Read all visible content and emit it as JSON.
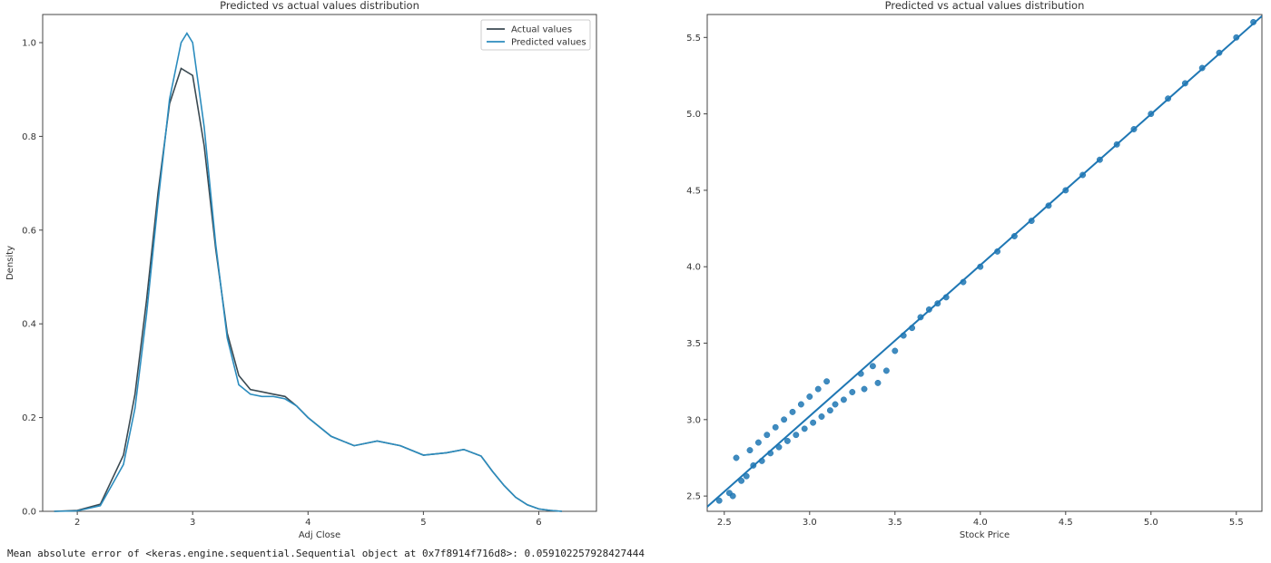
{
  "console": {
    "output": "Mean absolute error of <keras.engine.sequential.Sequential object at 0x7f8914f716d8>: 0.059102257928427444"
  },
  "chart_data": [
    {
      "type": "line",
      "title": "Predicted vs actual values distribution",
      "xlabel": "Adj Close",
      "ylabel": "Density",
      "xlim": [
        1.7,
        6.5
      ],
      "ylim": [
        0,
        1.06
      ],
      "xticks": [
        2,
        3,
        4,
        5,
        6
      ],
      "yticks": [
        0.0,
        0.2,
        0.4,
        0.6,
        0.8,
        1.0
      ],
      "legend_position": "top-right",
      "series": [
        {
          "name": "Actual values",
          "color": "#3b4a52",
          "points": [
            [
              1.8,
              0.0
            ],
            [
              2.0,
              0.002
            ],
            [
              2.2,
              0.015
            ],
            [
              2.4,
              0.12
            ],
            [
              2.5,
              0.25
            ],
            [
              2.6,
              0.45
            ],
            [
              2.7,
              0.68
            ],
            [
              2.8,
              0.87
            ],
            [
              2.9,
              0.945
            ],
            [
              3.0,
              0.93
            ],
            [
              3.1,
              0.78
            ],
            [
              3.2,
              0.56
            ],
            [
              3.3,
              0.38
            ],
            [
              3.4,
              0.29
            ],
            [
              3.5,
              0.26
            ],
            [
              3.6,
              0.255
            ],
            [
              3.7,
              0.25
            ],
            [
              3.8,
              0.245
            ],
            [
              3.9,
              0.225
            ],
            [
              4.0,
              0.2
            ],
            [
              4.2,
              0.16
            ],
            [
              4.4,
              0.14
            ],
            [
              4.6,
              0.15
            ],
            [
              4.8,
              0.14
            ],
            [
              5.0,
              0.12
            ],
            [
              5.2,
              0.125
            ],
            [
              5.35,
              0.132
            ],
            [
              5.5,
              0.118
            ],
            [
              5.6,
              0.085
            ],
            [
              5.7,
              0.055
            ],
            [
              5.8,
              0.03
            ],
            [
              5.9,
              0.014
            ],
            [
              6.0,
              0.005
            ],
            [
              6.1,
              0.002
            ],
            [
              6.2,
              0.0
            ]
          ]
        },
        {
          "name": "Predicted values",
          "color": "#2b8cbe",
          "points": [
            [
              1.8,
              0.0
            ],
            [
              2.0,
              0.001
            ],
            [
              2.2,
              0.012
            ],
            [
              2.4,
              0.1
            ],
            [
              2.5,
              0.22
            ],
            [
              2.6,
              0.42
            ],
            [
              2.7,
              0.66
            ],
            [
              2.8,
              0.88
            ],
            [
              2.9,
              1.0
            ],
            [
              2.95,
              1.02
            ],
            [
              3.0,
              1.0
            ],
            [
              3.1,
              0.82
            ],
            [
              3.2,
              0.57
            ],
            [
              3.3,
              0.37
            ],
            [
              3.4,
              0.27
            ],
            [
              3.5,
              0.25
            ],
            [
              3.6,
              0.245
            ],
            [
              3.7,
              0.245
            ],
            [
              3.8,
              0.24
            ],
            [
              3.9,
              0.225
            ],
            [
              4.0,
              0.2
            ],
            [
              4.2,
              0.16
            ],
            [
              4.4,
              0.14
            ],
            [
              4.6,
              0.15
            ],
            [
              4.8,
              0.14
            ],
            [
              5.0,
              0.12
            ],
            [
              5.2,
              0.125
            ],
            [
              5.35,
              0.132
            ],
            [
              5.5,
              0.118
            ],
            [
              5.6,
              0.085
            ],
            [
              5.7,
              0.055
            ],
            [
              5.8,
              0.03
            ],
            [
              5.9,
              0.014
            ],
            [
              6.0,
              0.005
            ],
            [
              6.1,
              0.002
            ],
            [
              6.2,
              0.0
            ]
          ]
        }
      ]
    },
    {
      "type": "scatter",
      "title": "Predicted vs actual values distribution",
      "xlabel": "Stock Price",
      "ylabel": "",
      "xlim": [
        2.4,
        5.65
      ],
      "ylim": [
        2.4,
        5.65
      ],
      "xticks": [
        2.5,
        3.0,
        3.5,
        4.0,
        4.5,
        5.0,
        5.5
      ],
      "yticks": [
        2.5,
        3.0,
        3.5,
        4.0,
        4.5,
        5.0,
        5.5
      ],
      "color": "#1f77b4",
      "regression_line": [
        [
          2.4,
          2.43
        ],
        [
          5.65,
          5.64
        ]
      ],
      "points": [
        [
          2.47,
          2.47
        ],
        [
          2.53,
          2.52
        ],
        [
          2.55,
          2.5
        ],
        [
          2.57,
          2.75
        ],
        [
          2.6,
          2.6
        ],
        [
          2.63,
          2.63
        ],
        [
          2.65,
          2.8
        ],
        [
          2.67,
          2.7
        ],
        [
          2.7,
          2.85
        ],
        [
          2.72,
          2.73
        ],
        [
          2.75,
          2.9
        ],
        [
          2.77,
          2.78
        ],
        [
          2.8,
          2.95
        ],
        [
          2.82,
          2.82
        ],
        [
          2.85,
          3.0
        ],
        [
          2.87,
          2.86
        ],
        [
          2.9,
          3.05
        ],
        [
          2.92,
          2.9
        ],
        [
          2.95,
          3.1
        ],
        [
          2.97,
          2.94
        ],
        [
          3.0,
          3.15
        ],
        [
          3.02,
          2.98
        ],
        [
          3.05,
          3.2
        ],
        [
          3.07,
          3.02
        ],
        [
          3.1,
          3.25
        ],
        [
          3.12,
          3.06
        ],
        [
          3.15,
          3.1
        ],
        [
          3.2,
          3.13
        ],
        [
          3.25,
          3.18
        ],
        [
          3.3,
          3.3
        ],
        [
          3.32,
          3.2
        ],
        [
          3.37,
          3.35
        ],
        [
          3.4,
          3.24
        ],
        [
          3.45,
          3.32
        ],
        [
          3.5,
          3.45
        ],
        [
          3.55,
          3.55
        ],
        [
          3.6,
          3.6
        ],
        [
          3.65,
          3.67
        ],
        [
          3.7,
          3.72
        ],
        [
          3.75,
          3.76
        ],
        [
          3.8,
          3.8
        ],
        [
          3.9,
          3.9
        ],
        [
          4.0,
          4.0
        ],
        [
          4.1,
          4.1
        ],
        [
          4.2,
          4.2
        ],
        [
          4.3,
          4.3
        ],
        [
          4.4,
          4.4
        ],
        [
          4.5,
          4.5
        ],
        [
          4.6,
          4.6
        ],
        [
          4.7,
          4.7
        ],
        [
          4.8,
          4.8
        ],
        [
          4.9,
          4.9
        ],
        [
          5.0,
          5.0
        ],
        [
          5.1,
          5.1
        ],
        [
          5.2,
          5.2
        ],
        [
          5.3,
          5.3
        ],
        [
          5.4,
          5.4
        ],
        [
          5.5,
          5.5
        ],
        [
          5.6,
          5.6
        ]
      ]
    }
  ]
}
